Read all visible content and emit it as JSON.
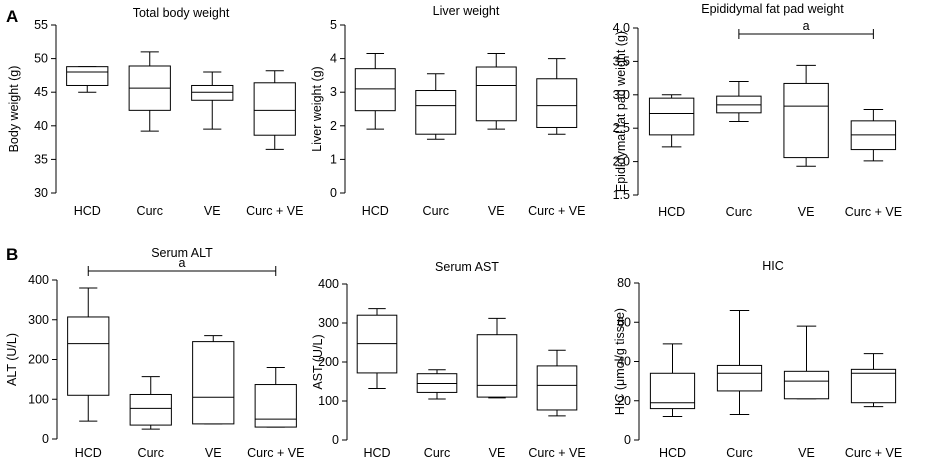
{
  "panel_labels": [
    "A",
    "B"
  ],
  "chart_data": [
    {
      "type": "box",
      "title": "Total body weight",
      "ylabel": "Body weight (g)",
      "ylim": [
        30,
        55
      ],
      "yticks": [
        "30",
        "35",
        "40",
        "45",
        "50",
        "55"
      ],
      "categories": [
        "HCD",
        "Curc",
        "VE",
        "Curc + VE"
      ],
      "boxes": [
        {
          "min": 45.0,
          "q1": 46.0,
          "median": 48.0,
          "q3": 48.8,
          "max": 48.8
        },
        {
          "min": 39.2,
          "q1": 42.3,
          "median": 45.6,
          "q3": 48.9,
          "max": 51.0
        },
        {
          "min": 39.5,
          "q1": 43.8,
          "median": 45.0,
          "q3": 46.0,
          "max": 48.0
        },
        {
          "min": 36.5,
          "q1": 38.6,
          "median": 42.3,
          "q3": 46.4,
          "max": 48.2
        }
      ]
    },
    {
      "type": "box",
      "title": "Liver weight",
      "ylabel": "Liver weight (g)",
      "ylim": [
        0,
        5
      ],
      "yticks": [
        "0",
        "1",
        "2",
        "3",
        "4",
        "5"
      ],
      "categories": [
        "HCD",
        "Curc",
        "VE",
        "Curc + VE"
      ],
      "boxes": [
        {
          "min": 1.9,
          "q1": 2.45,
          "median": 3.1,
          "q3": 3.7,
          "max": 4.15
        },
        {
          "min": 1.6,
          "q1": 1.75,
          "median": 2.6,
          "q3": 3.05,
          "max": 3.55
        },
        {
          "min": 1.9,
          "q1": 2.15,
          "median": 3.2,
          "q3": 3.75,
          "max": 4.15
        },
        {
          "min": 1.75,
          "q1": 1.95,
          "median": 2.6,
          "q3": 3.4,
          "max": 4.0
        }
      ]
    },
    {
      "type": "box",
      "title": "Epididymal fat pad weight",
      "ylabel": "Epididymal fat pad weight (g)",
      "ylim": [
        1.5,
        4.0
      ],
      "yticks": [
        "1.5",
        "2.0",
        "2.5",
        "3.0",
        "3.5",
        "4.0"
      ],
      "categories": [
        "HCD",
        "Curc",
        "VE",
        "Curc + VE"
      ],
      "boxes": [
        {
          "min": 2.22,
          "q1": 2.4,
          "median": 2.72,
          "q3": 2.95,
          "max": 3.0
        },
        {
          "min": 2.6,
          "q1": 2.73,
          "median": 2.85,
          "q3": 2.98,
          "max": 3.2
        },
        {
          "min": 1.93,
          "q1": 2.06,
          "median": 2.83,
          "q3": 3.17,
          "max": 3.44
        },
        {
          "min": 2.01,
          "q1": 2.18,
          "median": 2.4,
          "q3": 2.61,
          "max": 2.78
        }
      ],
      "significance": {
        "from": 1,
        "to": 3,
        "label": "a"
      }
    },
    {
      "type": "box",
      "title": "Serum ALT",
      "ylabel": "ALT (U/L)",
      "ylim": [
        0,
        400
      ],
      "yticks": [
        "0",
        "100",
        "200",
        "300",
        "400"
      ],
      "categories": [
        "HCD",
        "Curc",
        "VE",
        "Curc + VE"
      ],
      "boxes": [
        {
          "min": 45,
          "q1": 110,
          "median": 240,
          "q3": 307,
          "max": 380
        },
        {
          "min": 25,
          "q1": 35,
          "median": 77,
          "q3": 112,
          "max": 157
        },
        {
          "min": 38,
          "q1": 38,
          "median": 105,
          "q3": 245,
          "max": 260
        },
        {
          "min": 30,
          "q1": 30,
          "median": 50,
          "q3": 137,
          "max": 180
        }
      ],
      "significance": {
        "from": 0,
        "to": 3,
        "label": "a"
      }
    },
    {
      "type": "box",
      "title": "Serum AST",
      "ylabel": "AST (U/L)",
      "ylim": [
        0,
        400
      ],
      "yticks": [
        "0",
        "100",
        "200",
        "300",
        "400"
      ],
      "categories": [
        "HCD",
        "Curc",
        "VE",
        "Curc + VE"
      ],
      "boxes": [
        {
          "min": 132,
          "q1": 172,
          "median": 247,
          "q3": 320,
          "max": 337
        },
        {
          "min": 105,
          "q1": 122,
          "median": 145,
          "q3": 170,
          "max": 180
        },
        {
          "min": 108,
          "q1": 110,
          "median": 140,
          "q3": 270,
          "max": 312
        },
        {
          "min": 62,
          "q1": 77,
          "median": 140,
          "q3": 190,
          "max": 230
        }
      ]
    },
    {
      "type": "box",
      "title": "HIC",
      "ylabel": "HIC (μmol/g tissue)",
      "ylim": [
        0,
        80
      ],
      "yticks": [
        "0",
        "20",
        "40",
        "60",
        "80"
      ],
      "categories": [
        "HCD",
        "Curc",
        "VE",
        "Curc + VE"
      ],
      "boxes": [
        {
          "min": 12,
          "q1": 16,
          "median": 19,
          "q3": 34,
          "max": 49
        },
        {
          "min": 13,
          "q1": 25,
          "median": 34,
          "q3": 38,
          "max": 66
        },
        {
          "min": 21,
          "q1": 21,
          "median": 30,
          "q3": 35,
          "max": 58
        },
        {
          "min": 17,
          "q1": 19,
          "median": 34,
          "q3": 36,
          "max": 44
        }
      ]
    }
  ]
}
